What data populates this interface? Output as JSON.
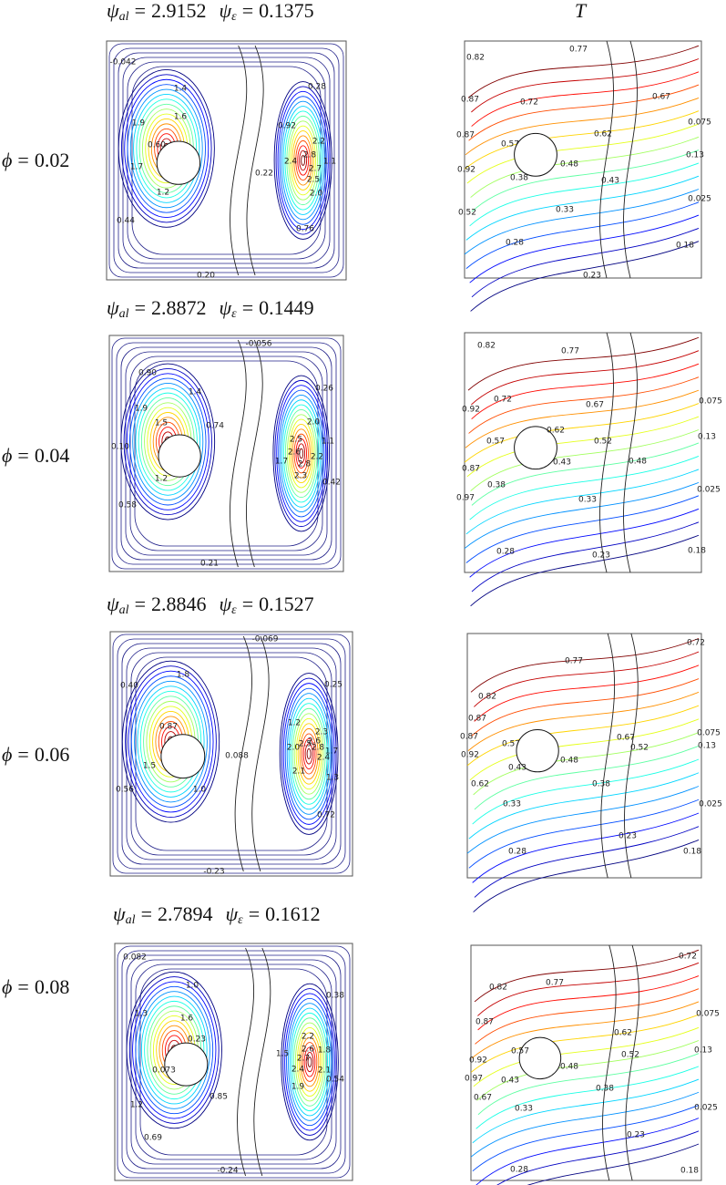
{
  "symbols": {
    "psi": "ψ",
    "al": "al",
    "eps": "ε",
    "phi": "ϕ",
    "eq": "="
  },
  "column_title": "T",
  "rows": [
    {
      "phi": 0.02,
      "psi_al": 2.9152,
      "psi_eps": 0.1375,
      "streamlines": [
        "-0.042",
        "1.4",
        "1.9",
        "1.6",
        "0.60",
        "1.7",
        "1.2",
        "0.44",
        "0.20",
        "0.28",
        "0.92",
        "2.2",
        "2.4",
        "2.8",
        "1.1",
        "2.7",
        "2.5",
        "2.0",
        "0.22",
        "0.76"
      ],
      "isotherms": [
        "0.82",
        "0.77",
        "0.87",
        "0.72",
        "0.67",
        "0.075",
        "0.87",
        "0.57",
        "0.62",
        "0.13",
        "0.92",
        "0.48",
        "0.38",
        "0.43",
        "0.025",
        "0.52",
        "0.33",
        "0.28",
        "0.18",
        "0.23"
      ]
    },
    {
      "phi": 0.04,
      "psi_al": 2.8872,
      "psi_eps": 0.1449,
      "streamlines": [
        "-0.056",
        "0.90",
        "1.4",
        "0.26",
        "1.9",
        "1.5",
        "0.74",
        "2.0",
        "0.10",
        "2.5",
        "2.6",
        "1.1",
        "2.2",
        "1.7",
        "2.8",
        "2.3",
        "1.2",
        "0.42",
        "0.58",
        "0.21"
      ],
      "isotherms": [
        "0.82",
        "0.77",
        "0.72",
        "0.075",
        "0.92",
        "0.67",
        "0.62",
        "0.52",
        "0.13",
        "0.57",
        "0.48",
        "0.43",
        "0.87",
        "0.38",
        "0.33",
        "0.97",
        "0.025",
        "0.28",
        "0.23",
        "0.18"
      ]
    },
    {
      "phi": 0.06,
      "psi_al": 2.8846,
      "psi_eps": 0.1527,
      "streamlines": [
        "-0.069",
        "0.40",
        "1.8",
        "0.25",
        "0.87",
        "1.2",
        "2.3",
        "2.5",
        "2.6",
        "1.7",
        "2.0",
        "2.8",
        "2.4",
        "1.5",
        "0.088",
        "2.1",
        "1.3",
        "0.56",
        "1.0",
        "0.72",
        "-0.23"
      ],
      "isotherms": [
        "0.72",
        "0.77",
        "0.82",
        "0.87",
        "0.67",
        "0.075",
        "0.87",
        "0.57",
        "0.52",
        "0.13",
        "0.92",
        "0.48",
        "0.43",
        "0.38",
        "0.62",
        "0.33",
        "0.025",
        "0.23",
        "0.28",
        "0.18"
      ]
    },
    {
      "phi": 0.08,
      "psi_al": 2.7894,
      "psi_eps": 0.1612,
      "streamlines": [
        "0.082",
        "1.0",
        "0.38",
        "1.3",
        "1.6",
        "0.23",
        "2.2",
        "2.6",
        "1.5",
        "2.7",
        "1.8",
        "2.4",
        "2.1",
        "0.54",
        "0.073",
        "1.9",
        "0.85",
        "1.2",
        "0.69",
        "-0.24"
      ],
      "isotherms": [
        "0.72",
        "0.82",
        "0.77",
        "0.075",
        "0.87",
        "0.62",
        "0.57",
        "0.52",
        "0.13",
        "0.92",
        "0.48",
        "0.97",
        "0.43",
        "0.38",
        "0.67",
        "0.33",
        "0.025",
        "0.23",
        "0.28",
        "0.18"
      ]
    }
  ]
}
